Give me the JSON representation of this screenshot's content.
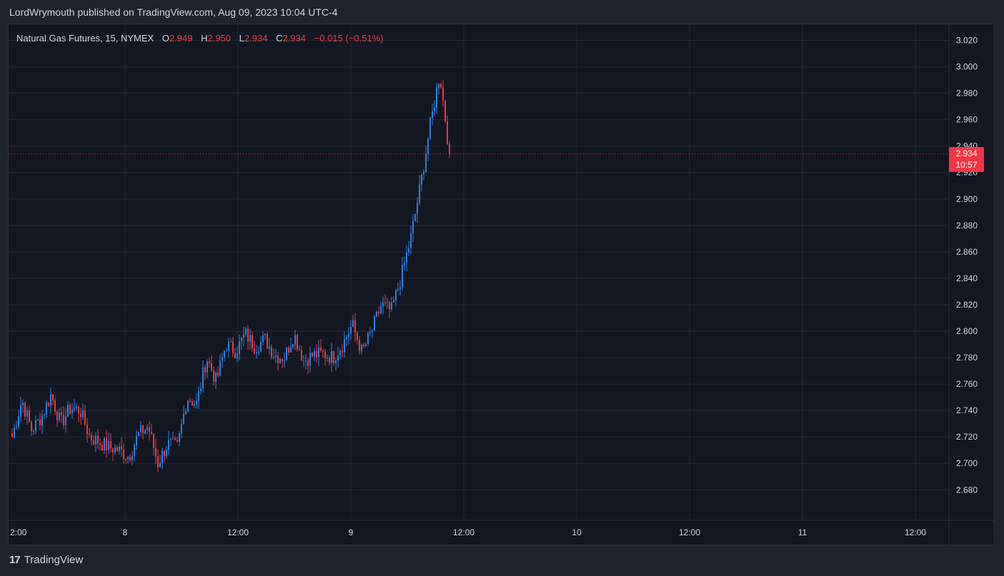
{
  "header": {
    "published_line": "LordWrymouth published on TradingView.com, Aug 09, 2023 10:04 UTC-4"
  },
  "legend": {
    "symbol": "Natural Gas Futures, 15, NYMEX",
    "open_label": "O",
    "open_value": "2.949",
    "high_label": "H",
    "high_value": "2.950",
    "low_label": "L",
    "low_value": "2.934",
    "close_label": "C",
    "close_value": "2.934",
    "change": "−0.015 (−0.51%)"
  },
  "price_tag": {
    "price": "2.934",
    "countdown": "10:57"
  },
  "brand": {
    "logo": "17",
    "name": "TradingView"
  },
  "colors": {
    "up": "#2f7fe0",
    "down": "#f23645",
    "background": "#131722",
    "grid": "#232733",
    "text": "#d1d4dc",
    "last_price_line": "#f23645"
  },
  "chart_data": {
    "type": "candlestick",
    "symbol": "Natural Gas Futures",
    "interval": "15",
    "exchange": "NYMEX",
    "ylim": [
      2.67,
      3.03
    ],
    "y_ticks": [
      "2.680",
      "2.700",
      "2.720",
      "2.740",
      "2.760",
      "2.780",
      "2.800",
      "2.820",
      "2.840",
      "2.860",
      "2.880",
      "2.900",
      "2.920",
      "2.940",
      "2.960",
      "2.980",
      "3.000",
      "3.020"
    ],
    "x_ticks": [
      "2:00",
      "8",
      "12:00",
      "9",
      "12:00",
      "10",
      "12:00",
      "11",
      "12:00"
    ],
    "last_price": 2.934,
    "grid": true,
    "anchors": [
      2.72,
      2.748,
      2.725,
      2.735,
      2.752,
      2.73,
      2.742,
      2.74,
      2.72,
      2.716,
      2.712,
      2.71,
      2.705,
      2.722,
      2.728,
      2.7,
      2.715,
      2.712,
      2.75,
      2.745,
      2.78,
      2.762,
      2.79,
      2.785,
      2.798,
      2.788,
      2.794,
      2.782,
      2.78,
      2.798,
      2.778,
      2.782,
      2.783,
      2.78,
      2.79,
      2.805,
      2.784,
      2.8,
      2.82,
      2.815,
      2.84,
      2.87,
      2.91,
      2.955,
      2.995,
      2.934
    ]
  }
}
